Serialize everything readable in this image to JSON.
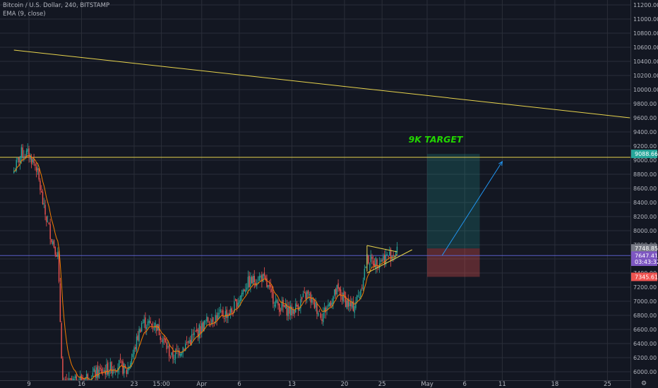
{
  "legend": {
    "symbol": "Bitcoin / U.S. Dollar, 240, BITSTAMP",
    "indicator": "EMA (9, close)"
  },
  "annotation": {
    "text": "9K TARGET",
    "color": "#22d400"
  },
  "colors": {
    "background": "#131722",
    "grid": "#2a2e39",
    "up": "#26a69a",
    "down": "#ef5350",
    "ema": "#f57c00",
    "trendline": "#e8d44d",
    "target_zone": "#26a69a",
    "stop_zone": "#ef5350",
    "projection": "#2196f3"
  },
  "chart_data": {
    "type": "candlestick",
    "title": "",
    "xlabel": "",
    "ylabel": "",
    "ylim": [
      5950,
      11260
    ],
    "y_ticks": [
      6000,
      6200,
      6400,
      6600,
      6800,
      7000,
      7200,
      7400,
      7600,
      7800,
      8000,
      8200,
      8400,
      8600,
      8800,
      9000,
      9200,
      9400,
      9600,
      9800,
      10000,
      10200,
      10400,
      10600,
      10800,
      11000,
      11200
    ],
    "x_ticks": [
      {
        "label": "9",
        "date": "2020-03-09"
      },
      {
        "label": "16",
        "date": "2020-03-16"
      },
      {
        "label": "23",
        "date": "2020-03-23"
      },
      {
        "label": "15:00",
        "date": "2020-03-26T15:00"
      },
      {
        "label": "Apr",
        "date": "2020-04-01"
      },
      {
        "label": "6",
        "date": "2020-04-06"
      },
      {
        "label": "13",
        "date": "2020-04-13"
      },
      {
        "label": "20",
        "date": "2020-04-20"
      },
      {
        "label": "25",
        "date": "2020-04-25"
      },
      {
        "label": "May",
        "date": "2020-05-01"
      },
      {
        "label": "6",
        "date": "2020-05-06"
      },
      {
        "label": "11",
        "date": "2020-05-11"
      },
      {
        "label": "18",
        "date": "2020-05-18"
      },
      {
        "label": "25",
        "date": "2020-05-25"
      }
    ],
    "price_path": [
      [
        "2020-03-07",
        8850
      ],
      [
        "2020-03-08",
        9100
      ],
      [
        "2020-03-09",
        9080
      ],
      [
        "2020-03-10",
        8900
      ],
      [
        "2020-03-11",
        8300
      ],
      [
        "2020-03-12",
        7900
      ],
      [
        "2020-03-12T20:00",
        7650
      ],
      [
        "2020-03-13",
        7200
      ],
      [
        "2020-03-13T12:00",
        5800
      ],
      [
        "2020-03-21",
        6100
      ],
      [
        "2020-03-22",
        6000
      ],
      [
        "2020-03-23",
        6300
      ],
      [
        "2020-03-24",
        6700
      ],
      [
        "2020-03-26",
        6650
      ],
      [
        "2020-03-28",
        6200
      ],
      [
        "2020-03-30",
        6400
      ],
      [
        "2020-04-02",
        6750
      ],
      [
        "2020-04-05",
        6850
      ],
      [
        "2020-04-07",
        7250
      ],
      [
        "2020-04-09",
        7350
      ],
      [
        "2020-04-11",
        6950
      ],
      [
        "2020-04-13",
        6850
      ],
      [
        "2020-04-15",
        7100
      ],
      [
        "2020-04-17",
        6800
      ],
      [
        "2020-04-19",
        7150
      ],
      [
        "2020-04-21",
        6900
      ],
      [
        "2020-04-22",
        7100
      ],
      [
        "2020-04-23",
        7600
      ],
      [
        "2020-04-24",
        7550
      ],
      [
        "2020-04-25",
        7600
      ],
      [
        "2020-04-26",
        7650
      ],
      [
        "2020-04-27",
        7700
      ]
    ],
    "price_labels": [
      {
        "value": 9088.66,
        "label": "9088.66",
        "color": "#26a69a",
        "text_color": "#ffffff"
      },
      {
        "value": 7748.85,
        "label": "7748.85",
        "color": "#787b86",
        "text_color": "#ffffff"
      },
      {
        "value": 7647.41,
        "label": "7647.41",
        "color": "#7e57c2",
        "text_color": "#ffffff"
      },
      {
        "value": 7560,
        "label": "03:43:32",
        "color": "#7e57c2",
        "text_color": "#ffffff"
      },
      {
        "value": 7345.61,
        "label": "7345.61",
        "color": "#ef5350",
        "text_color": "#ffffff"
      }
    ],
    "horizontal_line": {
      "value": 9040
    },
    "current_price_line": {
      "value": 7647.41
    },
    "descending_trendline": [
      [
        "2020-03-07",
        10560
      ],
      [
        "2020-05-28",
        9600
      ]
    ],
    "triangle": {
      "top": [
        [
          "2020-04-23",
          7790
        ],
        [
          "2020-04-27",
          7700
        ]
      ],
      "bottom": [
        [
          "2020-04-23",
          7400
        ],
        [
          "2020-04-29",
          7730
        ]
      ]
    },
    "long_position": {
      "start": "2020-05-01",
      "end": "2020-05-08",
      "entry": 7748.85,
      "target": 9088.66,
      "stop": 7345.61
    },
    "projection_arrow": [
      [
        "2020-05-03",
        7650
      ],
      [
        "2020-05-11",
        8980
      ]
    ]
  }
}
